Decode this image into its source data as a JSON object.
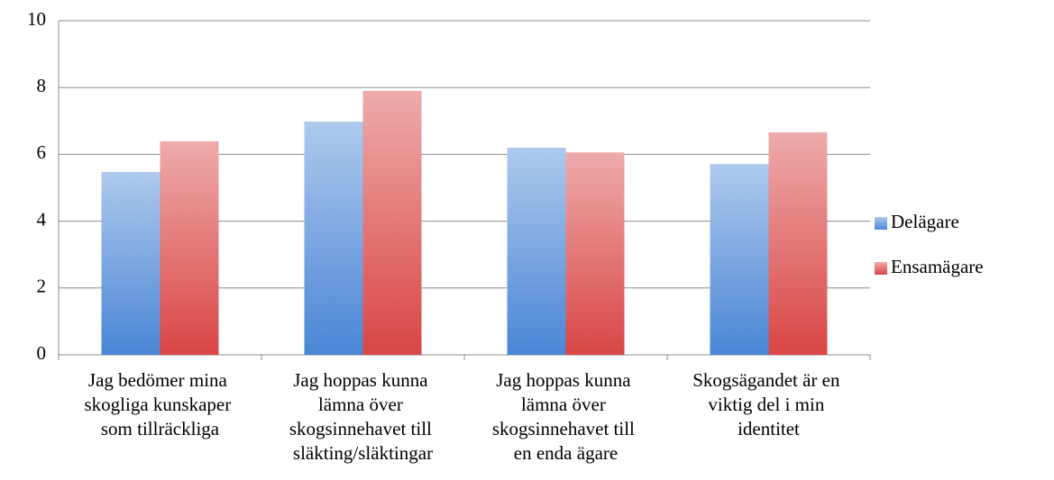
{
  "chart_data": {
    "type": "bar",
    "categories": [
      "Jag bedömer mina skogliga kunskaper som tillräckliga",
      "Jag hoppas kunna lämna över skogsinnehavet till släkting/släktingar",
      "Jag hoppas kunna lämna över skogsinnehavet till en enda ägare",
      "Skogsägandet är en viktig del i min identitet"
    ],
    "series": [
      {
        "name": "Delägare",
        "color": "#4a86d6",
        "values": [
          5.47,
          6.98,
          6.2,
          5.71
        ]
      },
      {
        "name": "Ensamägare",
        "color": "#d94545",
        "values": [
          6.39,
          7.9,
          6.06,
          6.66
        ]
      }
    ],
    "ylim": [
      0,
      10
    ],
    "yticks": [
      0,
      2,
      4,
      6,
      8,
      10
    ],
    "grid": true,
    "legend": "right"
  }
}
